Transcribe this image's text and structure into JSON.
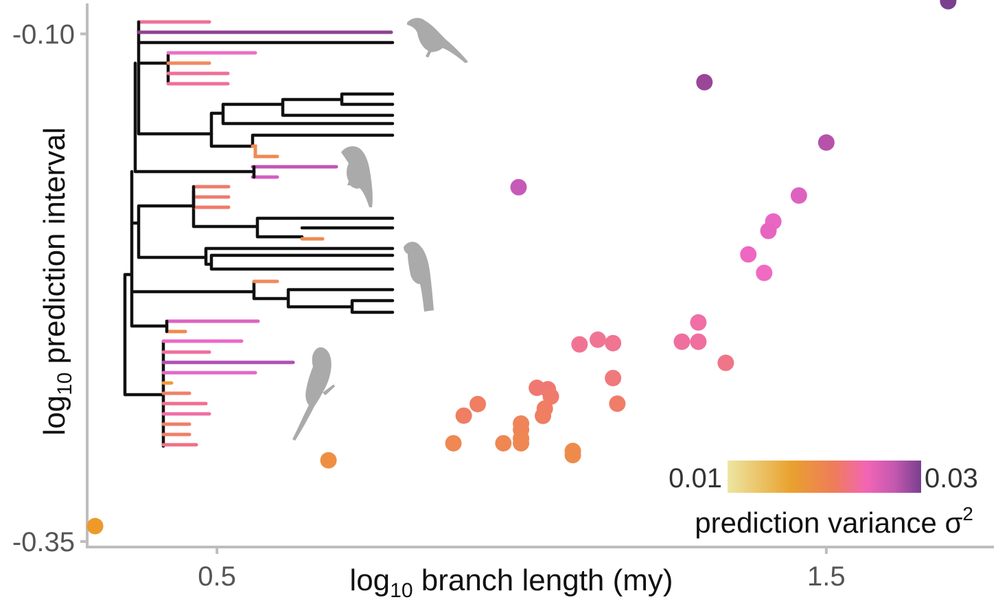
{
  "chart_data": {
    "type": "scatter",
    "xlabel_main": "log",
    "xlabel_sub": "10",
    "xlabel_rest": " branch length (my)",
    "ylabel_main": "log",
    "ylabel_sub": "10",
    "ylabel_rest": " prediction interval",
    "xticks": [
      {
        "value": 0.5,
        "label": "0.5"
      },
      {
        "value": 1.5,
        "label": "1.5"
      }
    ],
    "yticks": [
      {
        "value": -0.1,
        "label": "-0.10"
      },
      {
        "value": -0.35,
        "label": "-0.35"
      }
    ],
    "xlim": [
      0.287,
      1.775
    ],
    "ylim": [
      -0.3527,
      -0.085
    ],
    "grid": false,
    "legend": {
      "title_main": "prediction variance σ",
      "title_sup": "2",
      "min_label": "0.01",
      "max_label": "0.03",
      "placement": "bottom-right",
      "colors": [
        "#ede6a2",
        "#e9a12e",
        "#ef7c5a",
        "#f265b5",
        "#c459b0",
        "#7a3f8f"
      ]
    },
    "points": [
      {
        "x": 1.7,
        "y": -0.0839,
        "c": "#7b3f90"
      },
      {
        "x": 1.3,
        "y": -0.1238,
        "c": "#9a4699"
      },
      {
        "x": 1.5,
        "y": -0.1535,
        "c": "#b752ab"
      },
      {
        "x": 0.995,
        "y": -0.1755,
        "c": "#c65ab8"
      },
      {
        "x": 1.455,
        "y": -0.1796,
        "c": "#dd62c0"
      },
      {
        "x": 1.413,
        "y": -0.1924,
        "c": "#e867c3"
      },
      {
        "x": 1.405,
        "y": -0.197,
        "c": "#e765c0"
      },
      {
        "x": 1.372,
        "y": -0.2086,
        "c": "#ee67c1"
      },
      {
        "x": 1.398,
        "y": -0.2177,
        "c": "#f06ac2"
      },
      {
        "x": 1.29,
        "y": -0.2421,
        "c": "#ef6fa6"
      },
      {
        "x": 1.263,
        "y": -0.2516,
        "c": "#ef6f9e"
      },
      {
        "x": 1.29,
        "y": -0.2516,
        "c": "#ef6f9e"
      },
      {
        "x": 1.125,
        "y": -0.2506,
        "c": "#f07594"
      },
      {
        "x": 1.15,
        "y": -0.2523,
        "c": "#ef7592"
      },
      {
        "x": 1.095,
        "y": -0.2529,
        "c": "#f17393"
      },
      {
        "x": 1.335,
        "y": -0.262,
        "c": "#ef7588"
      },
      {
        "x": 1.15,
        "y": -0.2695,
        "c": "#ef797b"
      },
      {
        "x": 1.025,
        "y": -0.2743,
        "c": "#f07872"
      },
      {
        "x": 1.043,
        "y": -0.275,
        "c": "#f07872"
      },
      {
        "x": 1.048,
        "y": -0.2786,
        "c": "#ef7b6c"
      },
      {
        "x": 1.157,
        "y": -0.2821,
        "c": "#ef7d68"
      },
      {
        "x": 0.928,
        "y": -0.2823,
        "c": "#ef7e63"
      },
      {
        "x": 1.038,
        "y": -0.2845,
        "c": "#ef7e63"
      },
      {
        "x": 1.035,
        "y": -0.2881,
        "c": "#ef7e63"
      },
      {
        "x": 0.905,
        "y": -0.288,
        "c": "#ef7e63"
      },
      {
        "x": 0.999,
        "y": -0.2919,
        "c": "#ef845a"
      },
      {
        "x": 0.999,
        "y": -0.2949,
        "c": "#ef845a"
      },
      {
        "x": 0.999,
        "y": -0.2992,
        "c": "#ef8752"
      },
      {
        "x": 0.999,
        "y": -0.3016,
        "c": "#ef8752"
      },
      {
        "x": 0.97,
        "y": -0.3016,
        "c": "#ef8752"
      },
      {
        "x": 0.888,
        "y": -0.3016,
        "c": "#ef8852"
      },
      {
        "x": 1.084,
        "y": -0.3054,
        "c": "#ee8b4c"
      },
      {
        "x": 1.084,
        "y": -0.3074,
        "c": "#ee8b4c"
      },
      {
        "x": 0.683,
        "y": -0.31,
        "c": "#ee8e42"
      },
      {
        "x": 0.3,
        "y": -0.3424,
        "c": "#ed9a2a"
      }
    ]
  }
}
